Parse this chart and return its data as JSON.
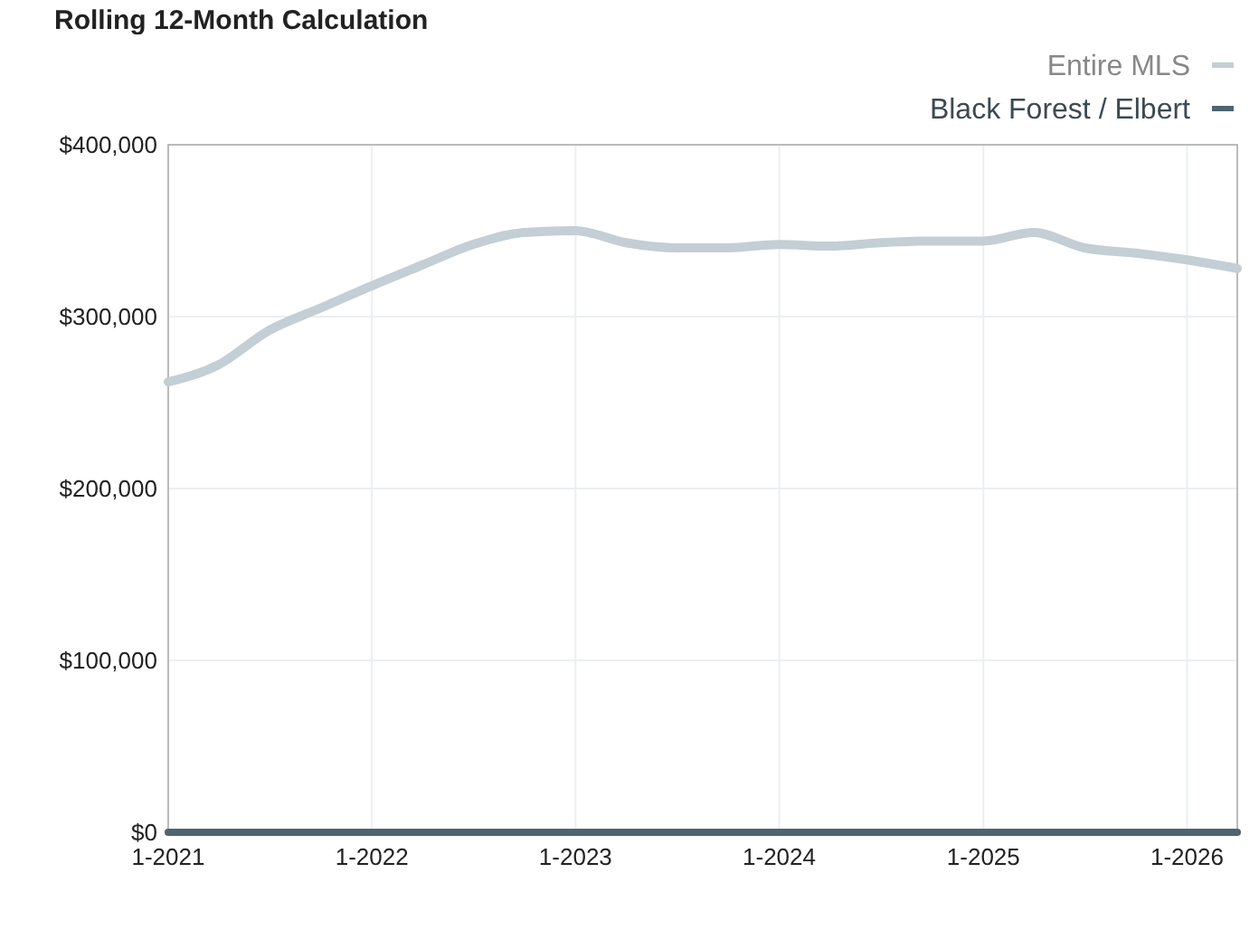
{
  "chart_data": {
    "type": "line",
    "title": "Rolling 12-Month Calculation",
    "x": [
      "2021-01",
      "2021-04",
      "2021-07",
      "2021-10",
      "2022-01",
      "2022-04",
      "2022-07",
      "2022-10",
      "2023-01",
      "2023-04",
      "2023-07",
      "2023-10",
      "2024-01",
      "2024-04",
      "2024-07",
      "2024-10",
      "2025-01",
      "2025-04",
      "2025-07",
      "2025-10",
      "2026-01",
      "2026-04"
    ],
    "series": [
      {
        "name": "Entire MLS",
        "color": "#c3ced5",
        "values": [
          262000,
          272000,
          292000,
          305000,
          318000,
          330000,
          342000,
          349000,
          350000,
          343000,
          340000,
          340000,
          342000,
          341000,
          343000,
          344000,
          344000,
          349000,
          340000,
          337000,
          333000,
          328000
        ]
      },
      {
        "name": "Black Forest / Elbert",
        "color": "#4f6470",
        "values": [
          0,
          0,
          0,
          0,
          0,
          0,
          0,
          0,
          0,
          0,
          0,
          0,
          0,
          0,
          0,
          0,
          0,
          0,
          0,
          0,
          0,
          0
        ]
      }
    ],
    "xlim": [
      "2021-01",
      "2026-04"
    ],
    "xticks": [
      {
        "value": "2021-01",
        "label": "1-2021"
      },
      {
        "value": "2022-01",
        "label": "1-2022"
      },
      {
        "value": "2023-01",
        "label": "1-2023"
      },
      {
        "value": "2024-01",
        "label": "1-2024"
      },
      {
        "value": "2025-01",
        "label": "1-2025"
      },
      {
        "value": "2026-01",
        "label": "1-2026"
      }
    ],
    "ylim": [
      0,
      400000
    ],
    "yticks": [
      {
        "value": 0,
        "label": "$0"
      },
      {
        "value": 100000,
        "label": "$100,000"
      },
      {
        "value": 200000,
        "label": "$200,000"
      },
      {
        "value": 300000,
        "label": "$300,000"
      },
      {
        "value": 400000,
        "label": "$400,000"
      }
    ],
    "grid": true,
    "legend": "top right",
    "marker": "none",
    "line_style": "solid"
  }
}
